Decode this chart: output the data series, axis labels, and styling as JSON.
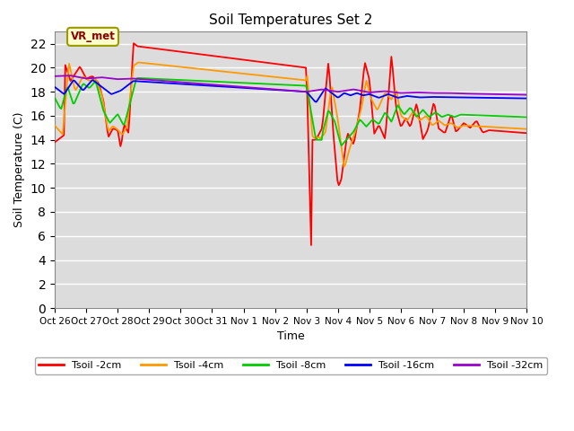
{
  "title": "Soil Temperatures Set 2",
  "xlabel": "Time",
  "ylabel": "Soil Temperature (C)",
  "ylim": [
    0,
    23
  ],
  "yticks": [
    0,
    2,
    4,
    6,
    8,
    10,
    12,
    14,
    16,
    18,
    20,
    22
  ],
  "colors": {
    "tsoil_2cm": "#ff0000",
    "tsoil_4cm": "#ff9900",
    "tsoil_8cm": "#00cc00",
    "tsoil_16cm": "#0000ff",
    "tsoil_32cm": "#9900cc"
  },
  "legend_labels": [
    "Tsoil -2cm",
    "Tsoil -4cm",
    "Tsoil -8cm",
    "Tsoil -16cm",
    "Tsoil -32cm"
  ],
  "annotation_text": "VR_met",
  "plot_bg_color": "#dcdcdc",
  "grid_color": "#ffffff",
  "tick_labels": [
    "Oct 26",
    "Oct 27",
    "Oct 28",
    "Oct 29",
    "Oct 30",
    "Oct 31",
    "Nov 1",
    "Nov 2",
    "Nov 3",
    "Nov 4",
    "Nov 5",
    "Nov 6",
    "Nov 7",
    "Nov 8",
    "Nov 9",
    "Nov 10"
  ]
}
